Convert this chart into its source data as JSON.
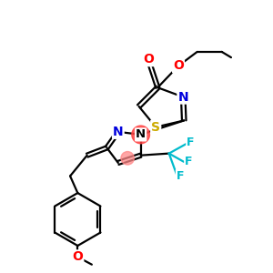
{
  "background_color": "#ffffff",
  "atom_colors": {
    "C": "#000000",
    "N": "#0000dd",
    "O": "#ff0000",
    "S": "#ccaa00",
    "F": "#00bbcc",
    "H": "#000000"
  },
  "lw": 1.6,
  "fs": 10,
  "figsize": [
    3.0,
    3.0
  ],
  "dpi": 100,
  "xlim": [
    30,
    285
  ],
  "ylim": [
    5,
    295
  ]
}
